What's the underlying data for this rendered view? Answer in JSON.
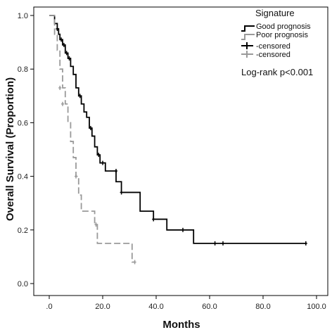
{
  "chart_data": {
    "type": "line",
    "xlabel": "Months",
    "ylabel": "Overall Survival (Proportion)",
    "xlim": [
      0,
      100
    ],
    "ylim": [
      0,
      1.0
    ],
    "x_ticks": [
      0,
      20,
      40,
      60,
      80,
      100
    ],
    "x_tick_labels": [
      ".0",
      "20.0",
      "40.0",
      "60.0",
      "80.0",
      "100.0"
    ],
    "y_ticks": [
      0,
      0.2,
      0.4,
      0.6,
      0.8,
      1.0
    ],
    "y_tick_labels": [
      "0.0",
      "0.2",
      "0.4",
      "0.6",
      "0.8",
      "1.0"
    ],
    "grid": false,
    "legend": {
      "title": "Signature",
      "placement": "top-right",
      "entries": [
        "Good prognosis",
        "Poor prognosis",
        "-censored",
        "-censored"
      ]
    },
    "annotation": "Log-rank p<0.001",
    "series": [
      {
        "name": "Good prognosis",
        "color": "#000000",
        "dash": false,
        "steps": [
          [
            0,
            1.0
          ],
          [
            2,
            0.97
          ],
          [
            3,
            0.95
          ],
          [
            3.5,
            0.93
          ],
          [
            4,
            0.91
          ],
          [
            5,
            0.89
          ],
          [
            6,
            0.86
          ],
          [
            7,
            0.84
          ],
          [
            8,
            0.81
          ],
          [
            9,
            0.78
          ],
          [
            10,
            0.73
          ],
          [
            11,
            0.7
          ],
          [
            12,
            0.67
          ],
          [
            13,
            0.64
          ],
          [
            14,
            0.62
          ],
          [
            15,
            0.58
          ],
          [
            16,
            0.55
          ],
          [
            17,
            0.51
          ],
          [
            18,
            0.48
          ],
          [
            19,
            0.45
          ],
          [
            21,
            0.42
          ],
          [
            25,
            0.38
          ],
          [
            27,
            0.34
          ],
          [
            34,
            0.27
          ],
          [
            39,
            0.24
          ],
          [
            44,
            0.2
          ],
          [
            54,
            0.15
          ],
          [
            96,
            0.15
          ]
        ],
        "censored": [
          [
            3,
            0.95
          ],
          [
            4.5,
            0.91
          ],
          [
            5.5,
            0.89
          ],
          [
            6.5,
            0.86
          ],
          [
            7.5,
            0.84
          ],
          [
            11.5,
            0.7
          ],
          [
            15.5,
            0.58
          ],
          [
            18.5,
            0.48
          ],
          [
            20,
            0.45
          ],
          [
            25,
            0.42
          ],
          [
            27,
            0.34
          ],
          [
            39,
            0.24
          ],
          [
            50,
            0.2
          ],
          [
            62,
            0.15
          ],
          [
            65,
            0.15
          ],
          [
            96,
            0.15
          ]
        ]
      },
      {
        "name": "Poor prognosis",
        "color": "#9a9a9a",
        "dash": true,
        "steps": [
          [
            0,
            1.0
          ],
          [
            2,
            0.93
          ],
          [
            3,
            0.87
          ],
          [
            4,
            0.8
          ],
          [
            5,
            0.73
          ],
          [
            6,
            0.67
          ],
          [
            7,
            0.6
          ],
          [
            8,
            0.53
          ],
          [
            9,
            0.47
          ],
          [
            10,
            0.4
          ],
          [
            11,
            0.33
          ],
          [
            12,
            0.27
          ],
          [
            17,
            0.22
          ],
          [
            18,
            0.15
          ],
          [
            31,
            0.08
          ],
          [
            32,
            0.08
          ]
        ],
        "censored": [
          [
            4,
            0.73
          ],
          [
            5,
            0.67
          ],
          [
            10,
            0.4
          ],
          [
            17.5,
            0.22
          ],
          [
            32,
            0.08
          ]
        ]
      }
    ]
  }
}
